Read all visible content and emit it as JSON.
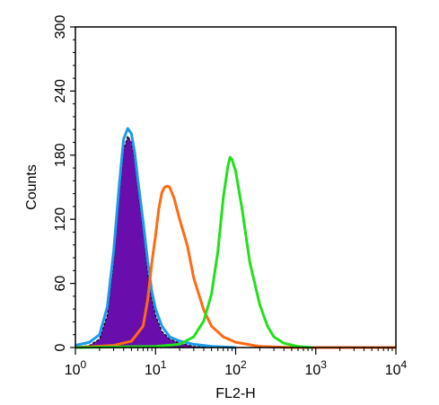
{
  "chart_data": {
    "type": "area",
    "title": "",
    "xlabel": "FL2-H",
    "ylabel": "Counts",
    "x_scale": "log",
    "xlim": [
      1,
      10000
    ],
    "ylim": [
      0,
      300
    ],
    "y_ticks": [
      0,
      60,
      120,
      180,
      240,
      300
    ],
    "x_ticks": [
      {
        "base": "10",
        "exp": "0",
        "value": 1
      },
      {
        "base": "10",
        "exp": "1",
        "value": 10
      },
      {
        "base": "10",
        "exp": "2",
        "value": 100
      },
      {
        "base": "10",
        "exp": "3",
        "value": 1000
      },
      {
        "base": "10",
        "exp": "4",
        "value": 10000
      }
    ],
    "grid": false,
    "legend": "none",
    "series": [
      {
        "style": "filled",
        "color": "#6a0dad",
        "outline": "#000000",
        "points": [
          [
            1,
            0
          ],
          [
            1.5,
            2
          ],
          [
            2,
            8
          ],
          [
            2.5,
            30
          ],
          [
            3,
            80
          ],
          [
            3.5,
            140
          ],
          [
            4,
            185
          ],
          [
            4.5,
            198
          ],
          [
            5,
            192
          ],
          [
            5.5,
            175
          ],
          [
            6,
            150
          ],
          [
            7,
            110
          ],
          [
            8,
            70
          ],
          [
            9,
            45
          ],
          [
            10,
            30
          ],
          [
            12,
            15
          ],
          [
            15,
            8
          ],
          [
            20,
            4
          ],
          [
            30,
            1
          ],
          [
            50,
            0
          ]
        ]
      },
      {
        "style": "outline",
        "color": "#1e9be8",
        "points": [
          [
            1,
            2
          ],
          [
            1.5,
            5
          ],
          [
            2,
            12
          ],
          [
            2.5,
            38
          ],
          [
            3,
            90
          ],
          [
            3.5,
            150
          ],
          [
            4,
            195
          ],
          [
            4.5,
            205
          ],
          [
            5,
            200
          ],
          [
            5.5,
            182
          ],
          [
            6,
            158
          ],
          [
            7,
            118
          ],
          [
            8,
            80
          ],
          [
            9,
            52
          ],
          [
            10,
            36
          ],
          [
            12,
            20
          ],
          [
            15,
            10
          ],
          [
            20,
            6
          ],
          [
            30,
            3
          ],
          [
            50,
            1
          ],
          [
            100,
            0
          ]
        ]
      },
      {
        "style": "outline",
        "color": "#ff6a13",
        "points": [
          [
            1,
            0
          ],
          [
            3,
            2
          ],
          [
            5,
            6
          ],
          [
            7,
            20
          ],
          [
            8,
            45
          ],
          [
            9,
            80
          ],
          [
            10,
            105
          ],
          [
            11,
            130
          ],
          [
            12,
            145
          ],
          [
            13,
            150
          ],
          [
            14,
            151
          ],
          [
            15,
            150
          ],
          [
            17,
            140
          ],
          [
            20,
            120
          ],
          [
            25,
            95
          ],
          [
            30,
            65
          ],
          [
            40,
            35
          ],
          [
            50,
            20
          ],
          [
            70,
            10
          ],
          [
            100,
            5
          ],
          [
            200,
            1
          ],
          [
            500,
            0
          ],
          [
            10000,
            0
          ]
        ]
      },
      {
        "style": "outline",
        "color": "#22e01a",
        "points": [
          [
            1,
            0
          ],
          [
            10,
            1
          ],
          [
            20,
            3
          ],
          [
            30,
            10
          ],
          [
            40,
            25
          ],
          [
            50,
            50
          ],
          [
            60,
            90
          ],
          [
            70,
            140
          ],
          [
            80,
            170
          ],
          [
            85,
            178
          ],
          [
            90,
            176
          ],
          [
            100,
            165
          ],
          [
            120,
            130
          ],
          [
            150,
            80
          ],
          [
            200,
            40
          ],
          [
            250,
            20
          ],
          [
            300,
            10
          ],
          [
            400,
            4
          ],
          [
            600,
            1
          ],
          [
            900,
            0
          ]
        ]
      }
    ]
  }
}
